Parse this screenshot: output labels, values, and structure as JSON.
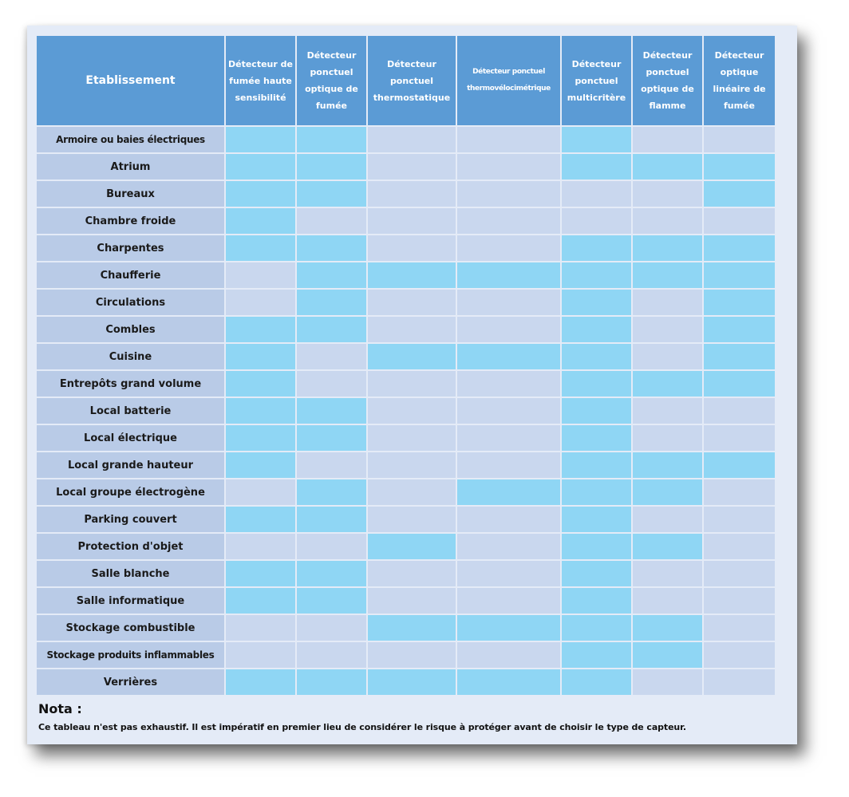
{
  "table": {
    "corner_label": "Etablissement",
    "columns": [
      "Détecteur de fumée haute sensibilité",
      "Détecteur ponctuel optique de fumée",
      "Détecteur ponctuel thermostatique",
      "Détecteur ponctuel thermovélocimétrique",
      "Détecteur ponctuel multicritère",
      "Détecteur ponctuel optique de flamme",
      "Détecteur optique linéaire de fumée"
    ],
    "rows": [
      {
        "label": "Armoire ou baies électriques",
        "marks": [
          1,
          1,
          0,
          0,
          1,
          0,
          0
        ]
      },
      {
        "label": "Atrium",
        "marks": [
          1,
          1,
          0,
          0,
          1,
          1,
          1
        ]
      },
      {
        "label": "Bureaux",
        "marks": [
          1,
          1,
          0,
          0,
          0,
          0,
          1
        ]
      },
      {
        "label": "Chambre froide",
        "marks": [
          1,
          0,
          0,
          0,
          0,
          0,
          0
        ]
      },
      {
        "label": "Charpentes",
        "marks": [
          1,
          1,
          0,
          0,
          1,
          1,
          1
        ]
      },
      {
        "label": "Chaufferie",
        "marks": [
          0,
          1,
          1,
          1,
          1,
          1,
          1
        ]
      },
      {
        "label": "Circulations",
        "marks": [
          0,
          1,
          0,
          0,
          1,
          0,
          1
        ]
      },
      {
        "label": "Combles",
        "marks": [
          1,
          1,
          0,
          0,
          1,
          0,
          1
        ]
      },
      {
        "label": "Cuisine",
        "marks": [
          1,
          0,
          1,
          1,
          1,
          0,
          1
        ]
      },
      {
        "label": "Entrepôts grand volume",
        "marks": [
          1,
          0,
          0,
          0,
          1,
          1,
          1
        ]
      },
      {
        "label": "Local batterie",
        "marks": [
          1,
          1,
          0,
          0,
          1,
          0,
          0
        ]
      },
      {
        "label": "Local électrique",
        "marks": [
          1,
          1,
          0,
          0,
          1,
          0,
          0
        ]
      },
      {
        "label": "Local grande hauteur",
        "marks": [
          1,
          0,
          0,
          0,
          1,
          1,
          1
        ]
      },
      {
        "label": "Local groupe électrogène",
        "marks": [
          0,
          1,
          0,
          1,
          1,
          1,
          0
        ]
      },
      {
        "label": "Parking couvert",
        "marks": [
          1,
          1,
          0,
          0,
          1,
          0,
          0
        ]
      },
      {
        "label": "Protection d'objet",
        "marks": [
          0,
          0,
          1,
          0,
          1,
          1,
          0
        ]
      },
      {
        "label": "Salle blanche",
        "marks": [
          1,
          1,
          0,
          0,
          1,
          0,
          0
        ]
      },
      {
        "label": "Salle informatique",
        "marks": [
          1,
          1,
          0,
          0,
          1,
          0,
          0
        ]
      },
      {
        "label": "Stockage combustible",
        "marks": [
          0,
          0,
          1,
          1,
          1,
          1,
          0
        ]
      },
      {
        "label": "Stockage produits inflammables",
        "marks": [
          0,
          0,
          0,
          0,
          1,
          1,
          0
        ]
      },
      {
        "label": "Verrières",
        "marks": [
          1,
          1,
          1,
          1,
          1,
          0,
          0
        ]
      }
    ]
  },
  "nota": {
    "title": "Nota :",
    "text": "Ce tableau n'est pas exhaustif. Il est impératif en premier lieu de considérer le risque à protéger avant de choisir le type de capteur."
  },
  "colors": {
    "header_bg": "#5b9bd5",
    "row_header_bg": "#b9cbe7",
    "cell_off": "#c9d7ee",
    "cell_on": "#8fd6f4"
  }
}
